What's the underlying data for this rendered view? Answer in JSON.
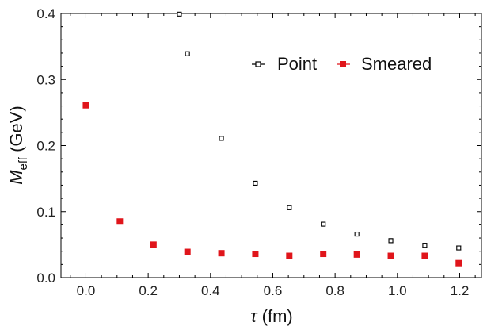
{
  "chart_data": {
    "type": "scatter",
    "xlabel": {
      "symbol": "τ",
      "unit": " (fm)"
    },
    "ylabel": {
      "symbol": "M",
      "subscript": "eff",
      "unit": " (GeV)"
    },
    "xlim": [
      -0.08,
      1.27
    ],
    "ylim": [
      0,
      0.4
    ],
    "x_ticks": [
      "0.0",
      "0.2",
      "0.4",
      "0.6",
      "0.8",
      "1.0",
      "1.2"
    ],
    "y_ticks": [
      "0.0",
      "0.1",
      "0.2",
      "0.3",
      "0.4"
    ],
    "legend_position": "top-right",
    "series": [
      {
        "name": "Point",
        "marker": "open-square",
        "color": "#000000",
        "points": [
          {
            "x": 0.3,
            "y": 0.399,
            "err": 0.002
          },
          {
            "x": 0.326,
            "y": 0.339,
            "err": 0.003
          },
          {
            "x": 0.435,
            "y": 0.211,
            "err": 0.003
          },
          {
            "x": 0.544,
            "y": 0.143,
            "err": 0.003
          },
          {
            "x": 0.653,
            "y": 0.106,
            "err": 0.003
          },
          {
            "x": 0.762,
            "y": 0.081,
            "err": 0.003
          },
          {
            "x": 0.87,
            "y": 0.066,
            "err": 0.003
          },
          {
            "x": 0.979,
            "y": 0.056,
            "err": 0.003
          },
          {
            "x": 1.088,
            "y": 0.049,
            "err": 0.003
          },
          {
            "x": 1.197,
            "y": 0.045,
            "err": 0.003
          }
        ]
      },
      {
        "name": "Smeared",
        "marker": "filled-square",
        "color": "#e0151b",
        "points": [
          {
            "x": 0.0,
            "y": 0.261
          },
          {
            "x": 0.109,
            "y": 0.085
          },
          {
            "x": 0.217,
            "y": 0.05
          },
          {
            "x": 0.326,
            "y": 0.039
          },
          {
            "x": 0.435,
            "y": 0.037
          },
          {
            "x": 0.544,
            "y": 0.036
          },
          {
            "x": 0.653,
            "y": 0.033
          },
          {
            "x": 0.762,
            "y": 0.036
          },
          {
            "x": 0.87,
            "y": 0.035
          },
          {
            "x": 0.979,
            "y": 0.033
          },
          {
            "x": 1.088,
            "y": 0.033
          },
          {
            "x": 1.197,
            "y": 0.022
          }
        ]
      }
    ]
  }
}
